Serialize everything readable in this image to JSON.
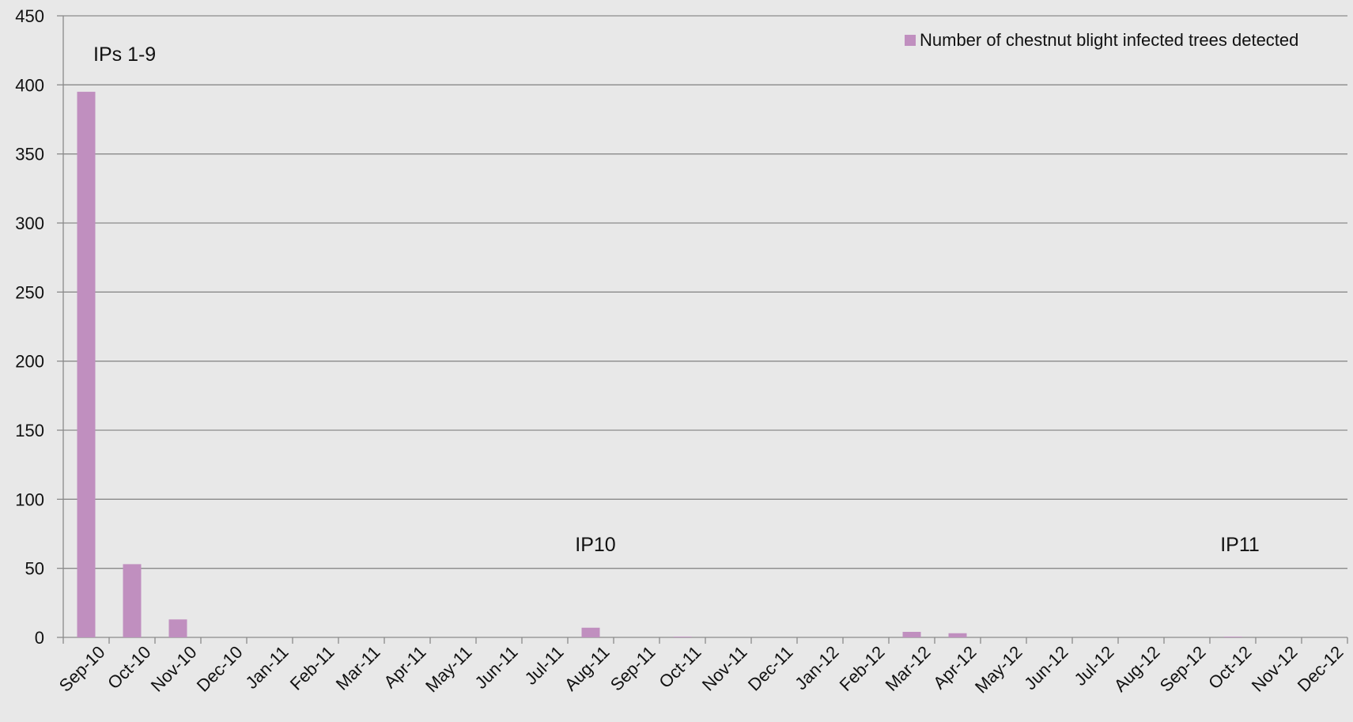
{
  "chart_data": {
    "type": "bar",
    "categories": [
      "Sep-10",
      "Oct-10",
      "Nov-10",
      "Dec-10",
      "Jan-11",
      "Feb-11",
      "Mar-11",
      "Apr-11",
      "May-11",
      "Jun-11",
      "Jul-11",
      "Aug-11",
      "Sep-11",
      "Oct-11",
      "Nov-11",
      "Dec-11",
      "Jan-12",
      "Feb-12",
      "Mar-12",
      "Apr-12",
      "May-12",
      "Jun-12",
      "Jul-12",
      "Aug-12",
      "Sep-12",
      "Oct-12",
      "Nov-12",
      "Dec-12"
    ],
    "series": [
      {
        "name": "Number of chestnut blight infected trees detected",
        "color": "#c08fbf",
        "values": [
          395,
          53,
          13,
          0,
          0,
          0,
          0,
          0,
          0,
          0,
          0,
          7,
          0,
          0.5,
          0,
          0,
          0,
          0,
          4,
          3,
          0,
          0,
          0,
          0,
          0,
          0.5,
          0,
          0
        ]
      }
    ],
    "annotations": [
      "IPs 1-9",
      "IP10",
      "IP11"
    ],
    "ylim": [
      0,
      450
    ],
    "yticks": [
      0,
      50,
      100,
      150,
      200,
      250,
      300,
      350,
      400,
      450
    ],
    "grid": true,
    "legend": "top-right"
  }
}
